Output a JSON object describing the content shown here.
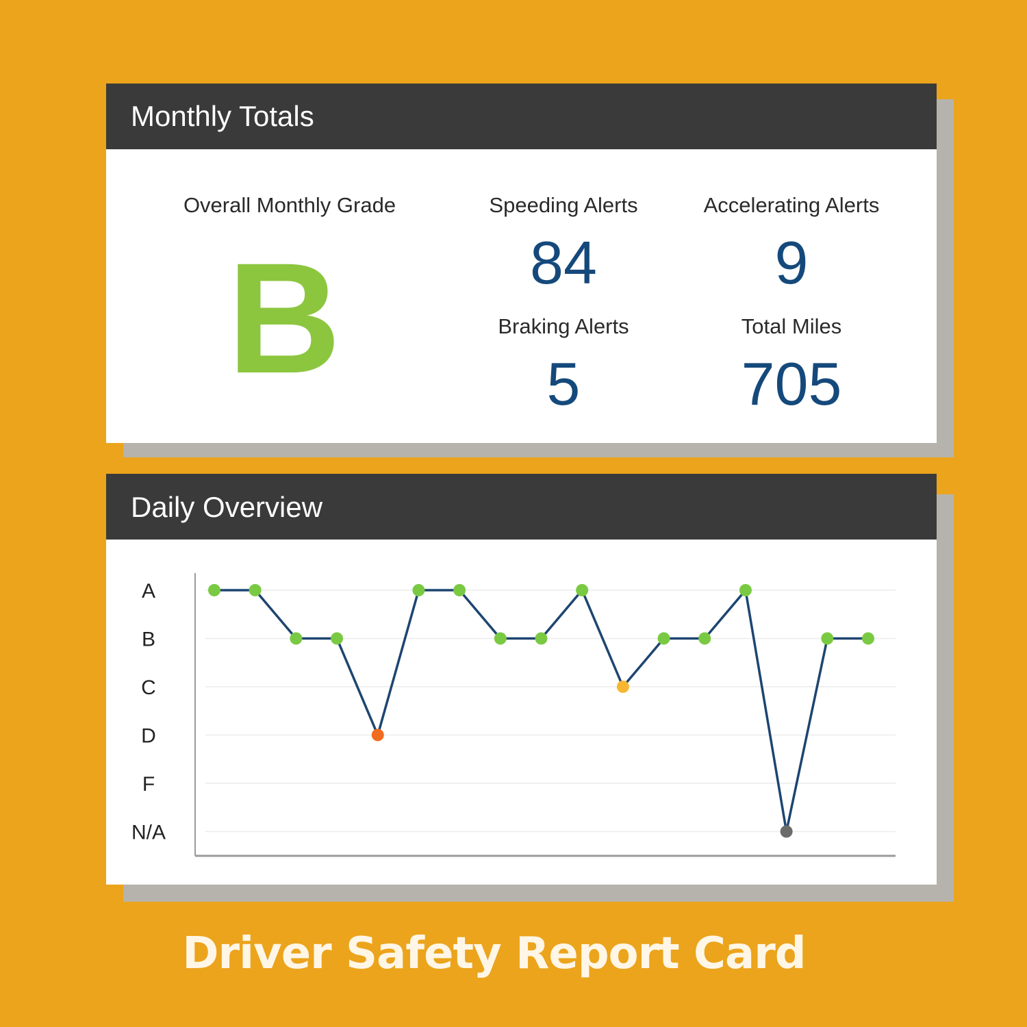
{
  "colors": {
    "background": "#eba41c",
    "header_bg": "#3a3a3a",
    "value_blue": "#15497b",
    "grade_green": "#8cc63f",
    "line_blue": "#1d4570",
    "marker_green": "#7ac943",
    "marker_yellow": "#f7b733",
    "marker_orange": "#f16c1e",
    "marker_gray": "#6b6b6b"
  },
  "monthly": {
    "title": "Monthly Totals",
    "grade_label": "Overall Monthly Grade",
    "grade_value": "B",
    "stats": [
      {
        "label": "Speeding Alerts",
        "value": "84"
      },
      {
        "label": "Accelerating Alerts",
        "value": "9"
      },
      {
        "label": "Braking Alerts",
        "value": "5"
      },
      {
        "label": "Total Miles",
        "value": "705"
      }
    ]
  },
  "daily": {
    "title": "Daily Overview"
  },
  "chart_data": {
    "type": "line",
    "title": "Daily Overview",
    "y_categories": [
      "A",
      "B",
      "C",
      "D",
      "F",
      "N/A"
    ],
    "values": [
      "A",
      "A",
      "B",
      "B",
      "D",
      "A",
      "A",
      "B",
      "B",
      "A",
      "C",
      "B",
      "B",
      "A",
      "N/A",
      "B",
      "B"
    ],
    "marker_colors": {
      "A": "#7ac943",
      "B": "#7ac943",
      "C": "#f7b733",
      "D": "#f16c1e",
      "F": "#e53935",
      "N/A": "#6b6b6b"
    },
    "grid": true
  },
  "footer": {
    "title": "Driver Safety Report Card"
  }
}
